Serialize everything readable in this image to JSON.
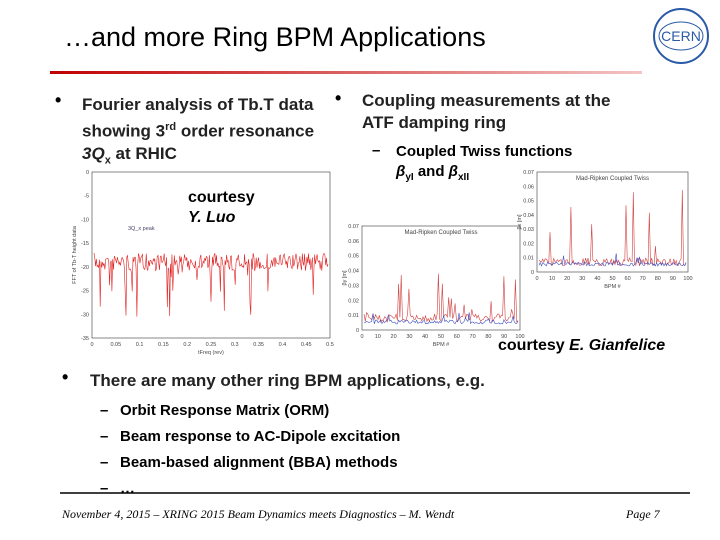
{
  "header": {
    "title": "…and more Ring BPM Applications",
    "logo": "CERN"
  },
  "left": {
    "bullet": [
      "Fourier analysis of Tb.T data showing 3",
      "rd",
      " order resonance ",
      "3Q",
      "x",
      " at RHIC"
    ],
    "courtesy": [
      "courtesy",
      "Y. Luo"
    ]
  },
  "left_plot": {
    "yticks": [
      "0",
      "-5",
      "-10",
      "-15",
      "-20",
      "-25",
      "-30",
      "-35"
    ],
    "xticks": [
      "0",
      "0.05",
      "0.1",
      "0.15",
      "0.2",
      "0.25",
      "0.3",
      "0.35",
      "0.4",
      "0.45",
      "0.5"
    ],
    "legend": "3Q_x peak",
    "ylabel": "FFT of Tb-T height data",
    "xlabel": "tFreq (rev)"
  },
  "right": {
    "bullet": "Coupling measurements at the ATF damping ring",
    "sub": [
      "Coupled Twiss functions",
      "β",
      "yI",
      " and ",
      "β",
      "xII"
    ],
    "courtesy": [
      "courtesy ",
      "E. Gianfelice"
    ]
  },
  "right_plots": [
    {
      "title": "Mad-Ripken Coupled Twiss",
      "ylabel": "βy [m]",
      "xlabel": "BPM #",
      "yticks": [
        "0.07",
        "0.06",
        "0.05",
        "0.04",
        "0.03",
        "0.02",
        "0.01",
        "0"
      ],
      "xticks": [
        "0",
        "10",
        "20",
        "30",
        "40",
        "50",
        "60",
        "70",
        "80",
        "90",
        "100"
      ]
    },
    {
      "title": "Mad-Ripken Coupled Twiss",
      "ylabel": "βx [m]",
      "xlabel": "BPM #",
      "yticks": [
        "0.07",
        "0.06",
        "0.05",
        "0.04",
        "0.03",
        "0.02",
        "0.01",
        "0"
      ],
      "xticks": [
        "0",
        "10",
        "20",
        "30",
        "40",
        "50",
        "60",
        "70",
        "80",
        "90",
        "100"
      ]
    }
  ],
  "bottom": {
    "bullet": "There are many other ring BPM applications, e.g.",
    "items": [
      "Orbit Response Matrix (ORM)",
      "Beam response to AC-Dipole excitation",
      "Beam-based alignment (BBA) methods",
      "…"
    ]
  },
  "footer": {
    "text": "November 4, 2015 – XRING 2015 Beam Dynamics meets Diagnostics – M. Wendt",
    "page": "Page 7"
  }
}
